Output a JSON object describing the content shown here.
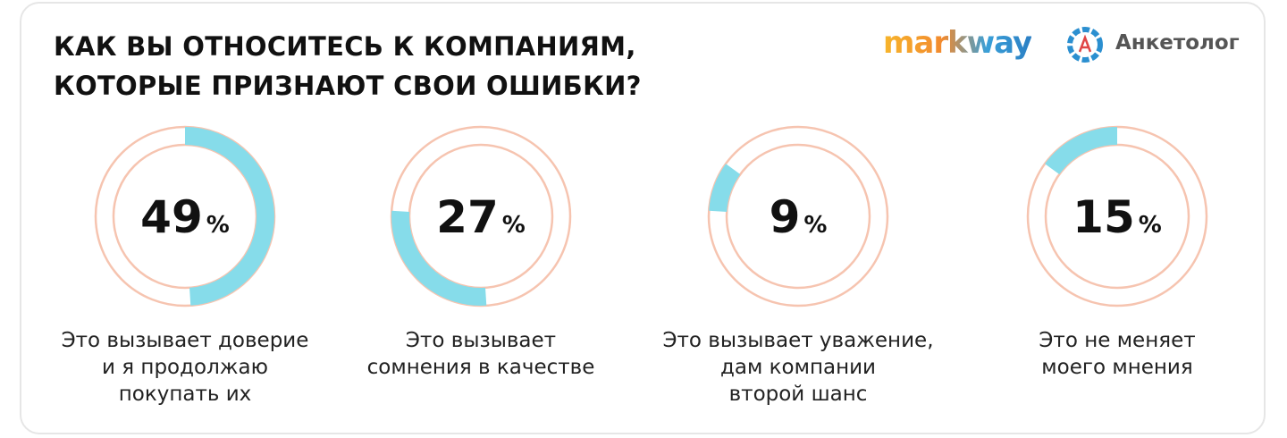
{
  "header": {
    "logos": [
      "markway",
      "Анкетолог"
    ]
  },
  "chart_data": {
    "type": "donut",
    "title": "КАК ВЫ ОТНОСИТЕСЬ К КОМПАНИЯМ,\nКОТОРЫЕ ПРИЗНАЮТ СВОИ ОШИБКИ?",
    "categories": [
      "Это вызывает доверие\nи я продолжаю\nпокупать их",
      "Это вызывает\nсомнения в качестве",
      "Это вызывает уважение,\nдам компании\nвторой шанс",
      "Это не меняет\nмоего мнения"
    ],
    "values": [
      49,
      27,
      9,
      15
    ],
    "unit": "%",
    "color": "#86dcea",
    "track_color": "#f6c4b0"
  }
}
